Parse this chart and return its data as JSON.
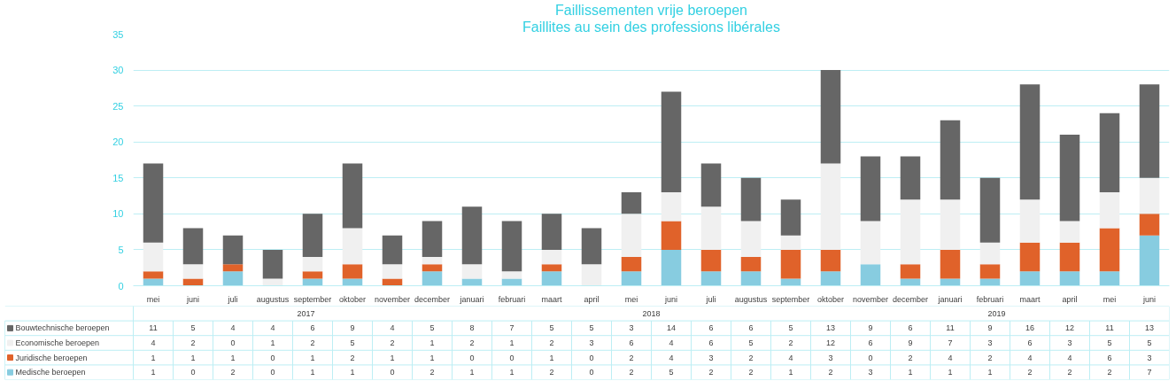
{
  "chart_data": {
    "type": "bar",
    "stacked": true,
    "title": "Faillissementen vrije beroepen",
    "subtitle": "Faillites au sein des professions libérales",
    "categories": [
      "mei",
      "juni",
      "juli",
      "augustus",
      "september",
      "oktober",
      "november",
      "december",
      "januari",
      "februari",
      "maart",
      "april",
      "mei",
      "juni",
      "juli",
      "augustus",
      "september",
      "oktober",
      "november",
      "december",
      "januari",
      "februari",
      "maart",
      "april",
      "mei",
      "juni"
    ],
    "series": [
      {
        "name": "Medische beroepen",
        "color": "#87cce0",
        "values": [
          1,
          0,
          2,
          0,
          1,
          1,
          0,
          2,
          1,
          1,
          2,
          0,
          2,
          5,
          2,
          2,
          1,
          2,
          3,
          1,
          1,
          1,
          2,
          2,
          2,
          7
        ]
      },
      {
        "name": "Juridische beroepen",
        "color": "#e0622a",
        "values": [
          1,
          1,
          1,
          0,
          1,
          2,
          1,
          1,
          0,
          0,
          1,
          0,
          2,
          4,
          3,
          2,
          4,
          3,
          0,
          2,
          4,
          2,
          4,
          4,
          6,
          3
        ]
      },
      {
        "name": "Economische beroepen",
        "color": "#f0f0f0",
        "values": [
          4,
          2,
          0,
          1,
          2,
          5,
          2,
          1,
          2,
          1,
          2,
          3,
          6,
          4,
          6,
          5,
          2,
          12,
          6,
          9,
          7,
          3,
          6,
          3,
          5,
          5
        ]
      },
      {
        "name": "Bouwtechnische beroepen",
        "color": "#666666",
        "values": [
          11,
          5,
          4,
          4,
          6,
          9,
          4,
          5,
          8,
          7,
          5,
          5,
          3,
          14,
          6,
          6,
          5,
          13,
          9,
          6,
          11,
          9,
          16,
          12,
          11,
          13
        ]
      }
    ],
    "annotations": [
      "2017",
      "2018",
      "2019"
    ],
    "ylim": [
      0,
      35
    ],
    "yticks": [
      0,
      5,
      10,
      15,
      20,
      25,
      30,
      35
    ],
    "grid": "y",
    "data_labels": true,
    "legend": "bottom left"
  }
}
